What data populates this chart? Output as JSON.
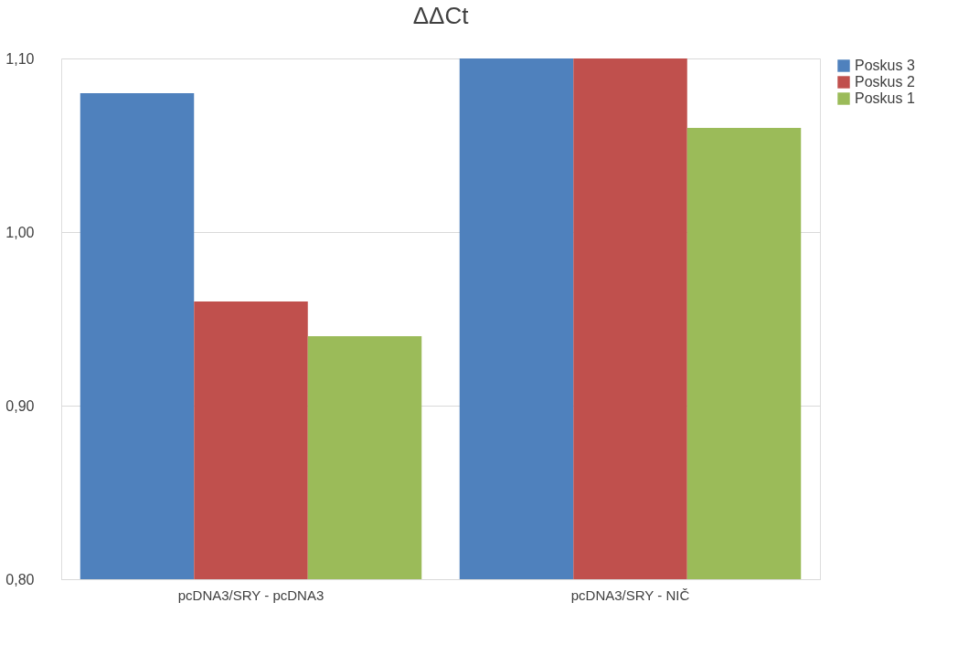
{
  "chart_data": {
    "type": "bar",
    "title": "ΔΔCt",
    "categories": [
      "pcDNA3/SRY - pcDNA3",
      "pcDNA3/SRY - NIČ"
    ],
    "series": [
      {
        "name": "Poskus 3",
        "color": "#4f81bd",
        "values": [
          1.08,
          1.1
        ]
      },
      {
        "name": "Poskus 2",
        "color": "#c0504d",
        "values": [
          0.96,
          1.1
        ]
      },
      {
        "name": "Poskus 1",
        "color": "#9bbb59",
        "values": [
          0.94,
          1.06
        ]
      }
    ],
    "ylim": [
      0.8,
      1.1
    ],
    "yticks": [
      {
        "value": 0.8,
        "label": "0,80"
      },
      {
        "value": 0.9,
        "label": "0,90"
      },
      {
        "value": 1.0,
        "label": "1,00"
      },
      {
        "value": 1.1,
        "label": "1,10"
      }
    ],
    "grid": "y",
    "legend": "right"
  }
}
